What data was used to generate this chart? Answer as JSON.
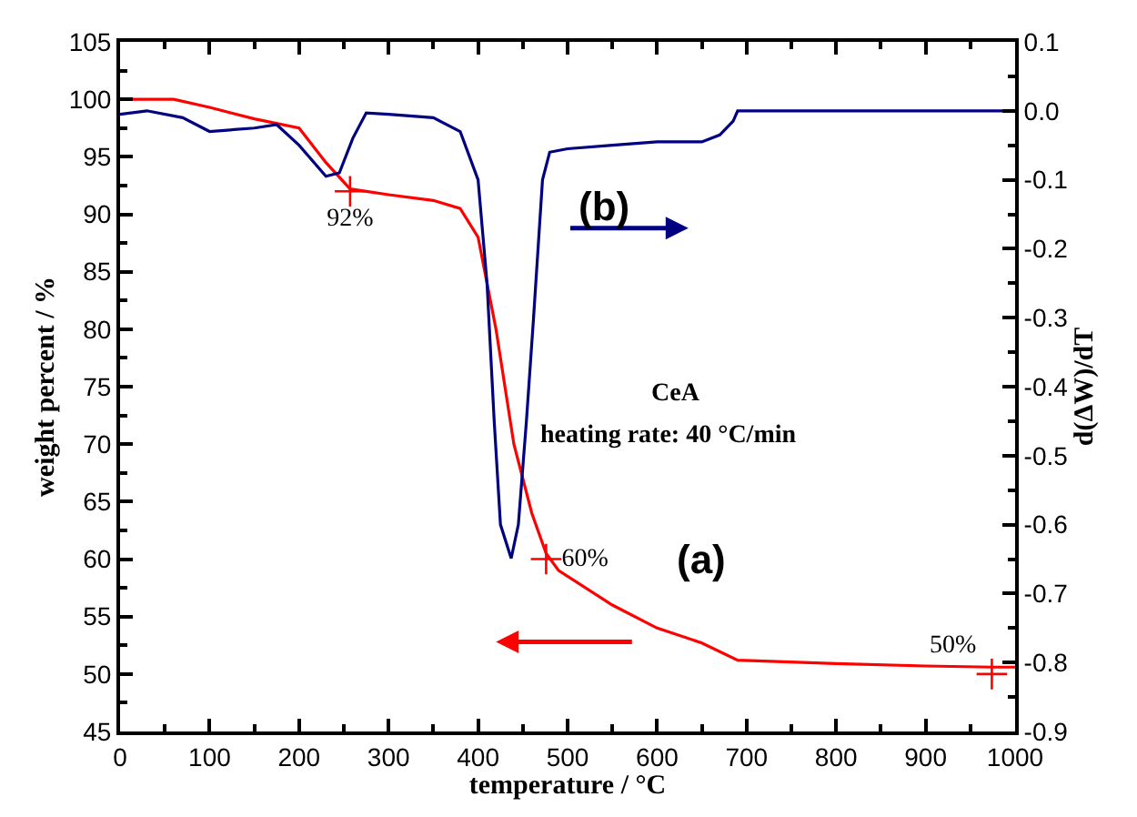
{
  "chart_data": {
    "type": "line",
    "xlabel": "temperature / °C",
    "ylabel": "weight percent / %",
    "y2label": "d(ΔW)/dT",
    "xlim": [
      0,
      1000
    ],
    "xticks": [
      0,
      100,
      200,
      300,
      400,
      500,
      600,
      700,
      800,
      900,
      1000
    ],
    "ylim": [
      45,
      105
    ],
    "yticks": [
      45,
      50,
      55,
      60,
      65,
      70,
      75,
      80,
      85,
      90,
      95,
      100,
      105
    ],
    "y2lim": [
      -0.9,
      0.1
    ],
    "y2ticks": [
      {
        "value": -0.9,
        "label": "-0.9"
      },
      {
        "value": -0.8,
        "label": "-0.8"
      },
      {
        "value": -0.7,
        "label": "-0.7"
      },
      {
        "value": -0.6,
        "label": "-0.6"
      },
      {
        "value": -0.5,
        "label": "-0.5"
      },
      {
        "value": -0.4,
        "label": "-0.4"
      },
      {
        "value": -0.3,
        "label": "-0.3"
      },
      {
        "value": -0.2,
        "label": "-0.2"
      },
      {
        "value": -0.1,
        "label": "-0.1"
      },
      {
        "value": 0,
        "label": "0.0"
      },
      {
        "value": 0.1,
        "label": "0.1"
      }
    ],
    "legend": false,
    "line_style": "solid",
    "marker": "none",
    "series": [
      {
        "color": "#ff0000",
        "x": [
          0,
          60,
          100,
          150,
          200,
          230,
          257,
          300,
          350,
          380,
          400,
          420,
          440,
          460,
          476,
          490,
          550,
          600,
          650,
          690,
          800,
          900,
          974,
          1000
        ],
        "values": [
          100,
          100,
          99.3,
          98.3,
          97.5,
          94.5,
          92.2,
          91.7,
          91.2,
          90.5,
          88,
          80,
          70,
          64,
          60.5,
          59,
          56,
          54,
          52.7,
          51.2,
          50.9,
          50.7,
          50.6,
          50.6
        ]
      },
      {
        "axis": "y2",
        "color": "#000080",
        "x": [
          0,
          30,
          70,
          100,
          150,
          175,
          200,
          230,
          245,
          260,
          275,
          300,
          350,
          380,
          400,
          410,
          418,
          425,
          437,
          445,
          454,
          462,
          472,
          480,
          500,
          550,
          600,
          650,
          670,
          685,
          690,
          800,
          1000
        ],
        "values": [
          -0.005,
          0.0,
          -0.01,
          -0.03,
          -0.025,
          -0.02,
          -0.05,
          -0.095,
          -0.09,
          -0.04,
          -0.003,
          -0.005,
          -0.01,
          -0.03,
          -0.1,
          -0.25,
          -0.45,
          -0.6,
          -0.649,
          -0.6,
          -0.45,
          -0.3,
          -0.1,
          -0.06,
          -0.055,
          -0.05,
          -0.045,
          -0.045,
          -0.035,
          -0.015,
          0.0,
          0.0,
          0.0
        ]
      },
      {
        "type": "scatter",
        "marker": "cross",
        "color": "#ff0000",
        "x": [
          257,
          476,
          974
        ],
        "values": [
          92,
          60,
          50
        ],
        "value_labels": [
          "92%",
          "60%",
          "50%"
        ]
      }
    ],
    "annotations": [
      "(b)",
      "(a)",
      "CeA",
      "heating rate: 40 °C/min"
    ]
  }
}
